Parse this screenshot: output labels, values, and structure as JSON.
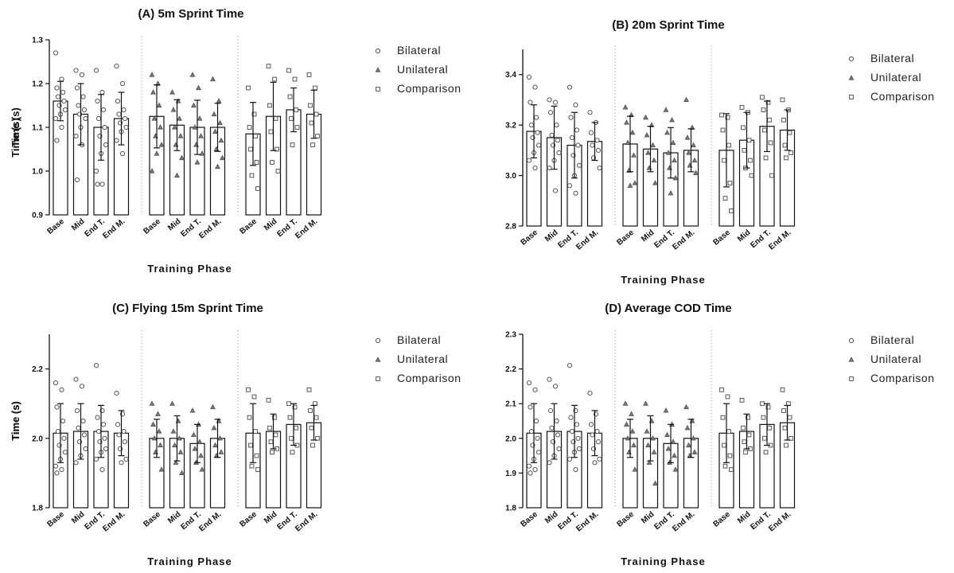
{
  "categories": [
    "Base",
    "Mid",
    "End T.",
    "End M."
  ],
  "groups": [
    "Bilateral",
    "Unilateral",
    "Comparison"
  ],
  "group_markers": {
    "Bilateral": "circle",
    "Unilateral": "triangle",
    "Comparison": "square"
  },
  "chart_data": [
    {
      "type": "bar",
      "title": "(A) 5m Sprint Time",
      "xlabel": "Training Phase",
      "ylabel": "Time (s)",
      "ylim": [
        0.9,
        1.3
      ],
      "yticks": [
        0.9,
        1.0,
        1.1,
        1.2,
        1.3
      ],
      "tick_decimals": 1,
      "categories": [
        "Base",
        "Mid",
        "End T.",
        "End M."
      ],
      "series": [
        {
          "name": "Bilateral",
          "marker": "circle",
          "means": [
            1.16,
            1.13,
            1.1,
            1.12
          ],
          "sd": [
            0.045,
            0.07,
            0.075,
            0.06
          ],
          "points": [
            [
              1.27,
              1.21,
              1.19,
              1.18,
              1.17,
              1.16,
              1.15,
              1.14,
              1.13,
              1.12,
              1.1,
              1.07
            ],
            [
              1.23,
              1.22,
              1.19,
              1.17,
              1.15,
              1.14,
              1.13,
              1.12,
              1.1,
              1.08,
              1.06,
              0.98
            ],
            [
              1.23,
              1.18,
              1.16,
              1.14,
              1.12,
              1.1,
              1.08,
              1.06,
              1.04,
              1.0,
              0.97,
              0.97
            ],
            [
              1.24,
              1.2,
              1.16,
              1.14,
              1.13,
              1.12,
              1.11,
              1.1,
              1.09,
              1.07,
              1.04
            ]
          ]
        },
        {
          "name": "Unilateral",
          "marker": "triangle",
          "means": [
            1.125,
            1.105,
            1.1,
            1.1
          ],
          "sd": [
            0.072,
            0.058,
            0.062,
            0.055
          ],
          "points": [
            [
              1.22,
              1.2,
              1.18,
              1.15,
              1.12,
              1.1,
              1.08,
              1.06,
              1.04,
              1.0
            ],
            [
              1.18,
              1.16,
              1.14,
              1.12,
              1.1,
              1.08,
              1.06,
              1.03,
              0.99
            ],
            [
              1.22,
              1.19,
              1.15,
              1.12,
              1.1,
              1.08,
              1.06,
              1.04,
              1.02
            ],
            [
              1.21,
              1.16,
              1.13,
              1.11,
              1.09,
              1.07,
              1.05,
              1.03,
              1.01
            ]
          ]
        },
        {
          "name": "Comparison",
          "marker": "square",
          "means": [
            1.085,
            1.125,
            1.14,
            1.13
          ],
          "sd": [
            0.072,
            0.078,
            0.05,
            0.055
          ],
          "points": [
            [
              1.19,
              1.13,
              1.1,
              1.08,
              1.05,
              1.02,
              0.99,
              0.96
            ],
            [
              1.24,
              1.21,
              1.15,
              1.12,
              1.09,
              1.05,
              1.02,
              1.0
            ],
            [
              1.23,
              1.21,
              1.17,
              1.14,
              1.12,
              1.1,
              1.06
            ],
            [
              1.22,
              1.19,
              1.15,
              1.13,
              1.11,
              1.08,
              1.06
            ]
          ]
        }
      ]
    },
    {
      "type": "bar",
      "title": "(B) 20m Sprint Time",
      "xlabel": "Training Phase",
      "ylabel": "Time (s)",
      "ylim": [
        2.8,
        3.5
      ],
      "yticks": [
        2.8,
        3.0,
        3.2,
        3.4
      ],
      "tick_decimals": 1,
      "categories": [
        "Base",
        "Mid",
        "End T.",
        "End M."
      ],
      "series": [
        {
          "name": "Bilateral",
          "marker": "circle",
          "means": [
            3.175,
            3.15,
            3.12,
            3.135
          ],
          "sd": [
            0.105,
            0.125,
            0.13,
            0.075
          ],
          "points": [
            [
              3.39,
              3.35,
              3.29,
              3.23,
              3.2,
              3.17,
              3.15,
              3.12,
              3.09,
              3.06,
              3.03
            ],
            [
              3.3,
              3.29,
              3.25,
              3.2,
              3.16,
              3.14,
              3.12,
              3.09,
              3.06,
              3.03,
              2.94
            ],
            [
              3.35,
              3.28,
              3.23,
              3.18,
              3.15,
              3.12,
              3.08,
              3.04,
              3.0,
              2.96,
              2.93
            ],
            [
              3.25,
              3.21,
              3.17,
              3.14,
              3.12,
              3.1,
              3.07,
              3.03
            ]
          ]
        },
        {
          "name": "Unilateral",
          "marker": "triangle",
          "means": [
            3.125,
            3.105,
            3.09,
            3.1
          ],
          "sd": [
            0.11,
            0.09,
            0.1,
            0.085
          ],
          "points": [
            [
              3.27,
              3.24,
              3.21,
              3.17,
              3.13,
              3.08,
              3.02,
              2.97,
              2.96
            ],
            [
              3.23,
              3.2,
              3.16,
              3.12,
              3.09,
              3.06,
              3.03,
              2.97
            ],
            [
              3.26,
              3.22,
              3.17,
              3.13,
              3.09,
              3.06,
              3.03,
              2.99,
              2.93
            ],
            [
              3.3,
              3.19,
              3.15,
              3.12,
              3.09,
              3.06,
              3.04,
              3.01
            ]
          ]
        },
        {
          "name": "Comparison",
          "marker": "square",
          "means": [
            3.1,
            3.14,
            3.195,
            3.18
          ],
          "sd": [
            0.145,
            0.11,
            0.1,
            0.08
          ],
          "points": [
            [
              3.24,
              3.23,
              3.18,
              3.12,
              3.06,
              2.97,
              2.91,
              2.86
            ],
            [
              3.27,
              3.25,
              3.19,
              3.14,
              3.1,
              3.06,
              3.03,
              3.0
            ],
            [
              3.31,
              3.29,
              3.26,
              3.22,
              3.18,
              3.13,
              3.07,
              3.0
            ],
            [
              3.3,
              3.26,
              3.22,
              3.17,
              3.12,
              3.09,
              3.07
            ]
          ]
        }
      ]
    },
    {
      "type": "bar",
      "title": "(C) Flying 15m Sprint Time",
      "xlabel": "Training Phase",
      "ylabel": "Time (s)",
      "ylim": [
        1.8,
        2.3
      ],
      "yticks": [
        1.8,
        2.0,
        2.2
      ],
      "tick_decimals": 1,
      "categories": [
        "Base",
        "Mid",
        "End T.",
        "End M."
      ],
      "series": [
        {
          "name": "Bilateral",
          "marker": "circle",
          "means": [
            2.015,
            2.02,
            2.02,
            2.015
          ],
          "sd": [
            0.085,
            0.08,
            0.075,
            0.065
          ],
          "points": [
            [
              2.16,
              2.14,
              2.09,
              2.05,
              2.02,
              2.0,
              1.98,
              1.96,
              1.94,
              1.92,
              1.91,
              1.9
            ],
            [
              2.17,
              2.15,
              2.08,
              2.05,
              2.03,
              2.01,
              1.99,
              1.97,
              1.95,
              1.93
            ],
            [
              2.21,
              2.08,
              2.06,
              2.04,
              2.02,
              2.0,
              1.99,
              1.97,
              1.96,
              1.94,
              1.91
            ],
            [
              2.13,
              2.07,
              2.04,
              2.02,
              2.01,
              1.99,
              1.97,
              1.94,
              1.93
            ]
          ]
        },
        {
          "name": "Unilateral",
          "marker": "triangle",
          "means": [
            2.0,
            2.0,
            1.985,
            2.0
          ],
          "sd": [
            0.055,
            0.065,
            0.055,
            0.055
          ],
          "points": [
            [
              2.1,
              2.07,
              2.04,
              2.02,
              2.0,
              1.98,
              1.96,
              1.91
            ],
            [
              2.1,
              2.05,
              2.02,
              2.0,
              1.98,
              1.96,
              1.93,
              1.9
            ],
            [
              2.08,
              2.04,
              2.01,
              1.99,
              1.97,
              1.95,
              1.93,
              1.91
            ],
            [
              2.09,
              2.05,
              2.03,
              2.0,
              1.98,
              1.96,
              1.95
            ]
          ]
        },
        {
          "name": "Comparison",
          "marker": "square",
          "means": [
            2.015,
            2.02,
            2.04,
            2.045
          ],
          "sd": [
            0.085,
            0.05,
            0.06,
            0.05
          ],
          "points": [
            [
              2.14,
              2.12,
              2.06,
              2.02,
              1.98,
              1.95,
              1.92,
              1.91
            ],
            [
              2.11,
              2.06,
              2.03,
              2.01,
              1.99,
              1.97,
              1.96
            ],
            [
              2.1,
              2.09,
              2.06,
              2.03,
              2.0,
              1.98,
              1.96
            ],
            [
              2.14,
              2.1,
              2.08,
              2.06,
              2.03,
              2.0,
              1.98
            ]
          ]
        }
      ]
    },
    {
      "type": "bar",
      "title": "(D) Average COD Time",
      "xlabel": "Training Phase",
      "ylabel": "Time (s)",
      "ylim": [
        1.8,
        2.3
      ],
      "yticks": [
        1.8,
        1.9,
        2.0,
        2.1,
        2.2,
        2.3
      ],
      "tick_decimals": 1,
      "categories": [
        "Base",
        "Mid",
        "End T.",
        "End M."
      ],
      "series": [
        {
          "name": "Bilateral",
          "marker": "circle",
          "means": [
            2.015,
            2.02,
            2.02,
            2.015
          ],
          "sd": [
            0.085,
            0.08,
            0.075,
            0.065
          ],
          "points": [
            [
              2.16,
              2.14,
              2.09,
              2.05,
              2.02,
              2.0,
              1.98,
              1.96,
              1.94,
              1.92,
              1.91,
              1.9
            ],
            [
              2.17,
              2.15,
              2.08,
              2.05,
              2.03,
              2.01,
              1.99,
              1.97,
              1.95,
              1.93
            ],
            [
              2.21,
              2.08,
              2.06,
              2.04,
              2.02,
              2.0,
              1.99,
              1.97,
              1.96,
              1.94,
              1.91
            ],
            [
              2.13,
              2.07,
              2.04,
              2.02,
              2.01,
              1.99,
              1.97,
              1.94,
              1.93
            ]
          ]
        },
        {
          "name": "Unilateral",
          "marker": "triangle",
          "means": [
            2.0,
            2.0,
            1.985,
            2.0
          ],
          "sd": [
            0.055,
            0.065,
            0.055,
            0.055
          ],
          "points": [
            [
              2.1,
              2.07,
              2.04,
              2.02,
              2.0,
              1.98,
              1.96,
              1.91
            ],
            [
              2.1,
              2.05,
              2.02,
              2.0,
              1.98,
              1.96,
              1.93,
              1.87
            ],
            [
              2.08,
              2.04,
              2.01,
              1.99,
              1.97,
              1.95,
              1.93,
              1.91
            ],
            [
              2.09,
              2.05,
              2.03,
              2.0,
              1.98,
              1.96,
              1.95
            ]
          ]
        },
        {
          "name": "Comparison",
          "marker": "square",
          "means": [
            2.015,
            2.02,
            2.04,
            2.045
          ],
          "sd": [
            0.085,
            0.05,
            0.06,
            0.05
          ],
          "points": [
            [
              2.14,
              2.12,
              2.06,
              2.02,
              1.98,
              1.95,
              1.92,
              1.91
            ],
            [
              2.11,
              2.06,
              2.03,
              2.01,
              1.99,
              1.97,
              1.96
            ],
            [
              2.1,
              2.09,
              2.06,
              2.03,
              2.0,
              1.98,
              1.96
            ],
            [
              2.14,
              2.1,
              2.08,
              2.06,
              2.03,
              2.0,
              1.98
            ]
          ]
        }
      ]
    }
  ]
}
